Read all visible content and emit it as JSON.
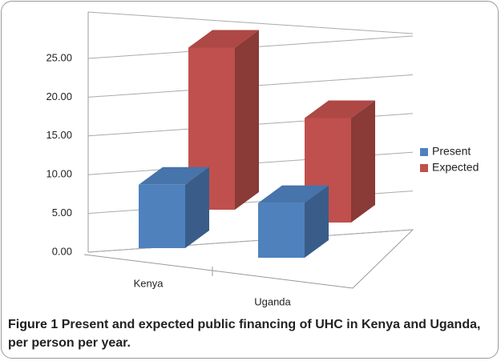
{
  "chart_data": {
    "type": "bar3d",
    "caption_label": "Figure 1",
    "caption": "Present and expected public financing of UHC in Kenya and Uganda, per person per year.",
    "categories": [
      "Kenya",
      "Uganda"
    ],
    "series": [
      {
        "name": "Present",
        "color": "#4f81bd",
        "values": [
          8.8,
          7.6
        ]
      },
      {
        "name": "Expected",
        "color": "#c0504d",
        "values": [
          22.5,
          14.5
        ]
      }
    ],
    "ylim": [
      0,
      25
    ],
    "yticks": [
      {
        "value": 0,
        "label": "0.00"
      },
      {
        "value": 5,
        "label": "5.00"
      },
      {
        "value": 10,
        "label": "10.00"
      },
      {
        "value": 15,
        "label": "15.00"
      },
      {
        "value": 20,
        "label": "20.00"
      },
      {
        "value": 25,
        "label": "25.00"
      }
    ],
    "grid": true,
    "legend": "right"
  }
}
